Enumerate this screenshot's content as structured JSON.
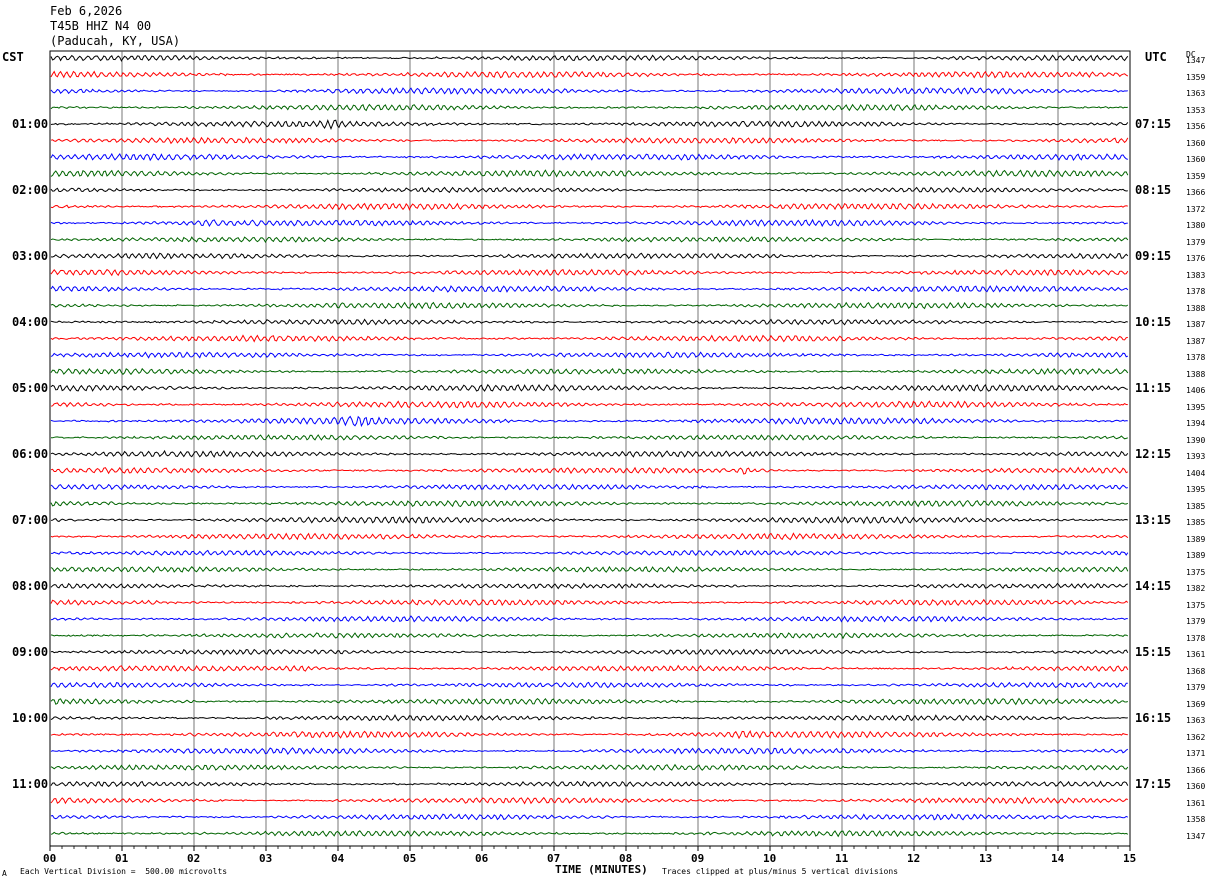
{
  "header": {
    "date": "Feb 6,2026",
    "station": "T45B HHZ N4 00",
    "location": "(Paducah, KY, USA)"
  },
  "left_tz": "CST",
  "right_tz": "UTC",
  "dc_label": "DC",
  "footer": {
    "left_mark": "A",
    "scale_note": "Each Vertical Division =  500.00 microvolts",
    "xlabel": "TIME (MINUTES)",
    "clip_note": "Traces clipped at plus/minus 5 vertical divisions"
  },
  "colors": {
    "trace_cycle": [
      "#000000",
      "#ff0000",
      "#0000ff",
      "#006400"
    ],
    "grid": "#000000"
  },
  "chart_data": {
    "type": "line",
    "title": "",
    "xlabel": "TIME (MINUTES)",
    "ylabel": "",
    "xlim": [
      0,
      15
    ],
    "x_ticks": [
      "00",
      "01",
      "02",
      "03",
      "04",
      "05",
      "06",
      "07",
      "08",
      "09",
      "10",
      "11",
      "12",
      "13",
      "14",
      "15"
    ],
    "left_hour_labels": [
      "01:00",
      "02:00",
      "03:00",
      "04:00",
      "05:00",
      "06:00",
      "07:00",
      "08:00",
      "09:00",
      "10:00",
      "11:00"
    ],
    "right_hour_labels": [
      "07:15",
      "08:15",
      "09:15",
      "10:15",
      "11:15",
      "12:15",
      "13:15",
      "14:15",
      "15:15",
      "16:15",
      "17:15"
    ],
    "trace_minutes_per_line": 15,
    "dc_offsets": [
      1347,
      1359,
      1363,
      1353,
      1356,
      1360,
      1360,
      1359,
      1366,
      1372,
      1380,
      1379,
      1376,
      1383,
      1378,
      1388,
      1387,
      1387,
      1378,
      1388,
      1406,
      1395,
      1394,
      1390,
      1393,
      1404,
      1395,
      1385,
      1385,
      1389,
      1389,
      1375,
      1382,
      1375,
      1379,
      1378,
      1361,
      1368,
      1379,
      1369,
      1363,
      1362,
      1371,
      1366,
      1360,
      1361,
      1358,
      1347
    ]
  }
}
